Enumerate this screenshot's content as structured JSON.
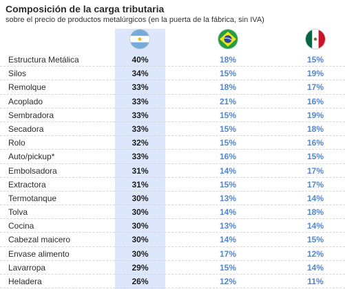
{
  "title": "Composición de la carga tributaria",
  "subtitle": "sobre el precio de  productos metalúrgicos (en la puerta de la fábrica, sin IVA)",
  "colors": {
    "highlight_band": "#dce7fb",
    "value_accent": "#4f86dc"
  },
  "columns": [
    {
      "flag": "argentina-flag-icon"
    },
    {
      "flag": "brazil-flag-icon"
    },
    {
      "flag": "mexico-flag-icon"
    }
  ],
  "chart_data": {
    "type": "table",
    "categories": [
      "Estructura Metálica",
      "Silos",
      "Remolque",
      "Acoplado",
      "Sembradora",
      "Secadora",
      "Rolo",
      "Auto/pickup*",
      "Embolsadora",
      "Extractora",
      "Termotanque",
      "Tolva",
      "Cocina",
      "Cabezal maicero",
      "Envase alimento",
      "Lavarropa",
      "Heladera"
    ],
    "series": [
      {
        "values": [
          "40%",
          "34%",
          "33%",
          "33%",
          "33%",
          "33%",
          "32%",
          "33%",
          "31%",
          "31%",
          "30%",
          "30%",
          "30%",
          "30%",
          "30%",
          "29%",
          "26%"
        ]
      },
      {
        "values": [
          "18%",
          "15%",
          "18%",
          "21%",
          "15%",
          "15%",
          "15%",
          "16%",
          "14%",
          "15%",
          "13%",
          "14%",
          "13%",
          "14%",
          "17%",
          "15%",
          "12%"
        ]
      },
      {
        "values": [
          "15%",
          "19%",
          "17%",
          "16%",
          "19%",
          "18%",
          "16%",
          "15%",
          "17%",
          "17%",
          "14%",
          "18%",
          "14%",
          "15%",
          "12%",
          "14%",
          "11%"
        ]
      }
    ]
  }
}
